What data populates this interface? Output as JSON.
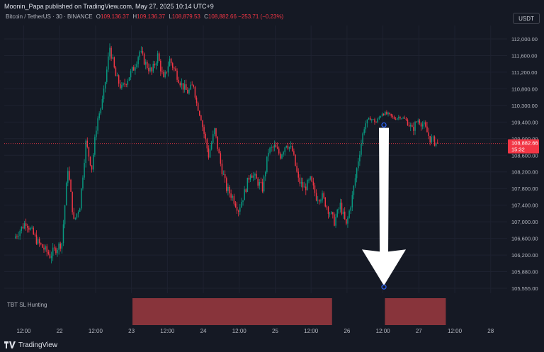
{
  "header": {
    "published": "Moonin_Papa published on TradingView.com, May 27, 2025 10:14 UTC+9"
  },
  "legend": {
    "symbol": "Bitcoin / TetherUS · 30 · BINANCE",
    "open_label": "O",
    "open": "109,136.37",
    "high_label": "H",
    "high": "109,136.37",
    "low_label": "L",
    "low": "108,879.53",
    "close_label": "C",
    "close": "108,882.66",
    "change": "−253.71 (−0.23%)"
  },
  "currency": "USDT",
  "price_tag": {
    "price": "108,882.66",
    "countdown": "15:32"
  },
  "indicator": {
    "name": "TBT SL Hunting"
  },
  "footer": {
    "brand": "TradingView"
  },
  "colors": {
    "background": "#151924",
    "up": "#089981",
    "down": "#f23645",
    "last_price": "#f23645",
    "zone": "#9c3a40",
    "grid": "#1e2230"
  },
  "chart_data": {
    "type": "candlestick",
    "y_axis_ticks": [
      "112,000.00",
      "111,600.00",
      "111,200.00",
      "110,800.00",
      "110,300.00",
      "109,400.00",
      "109,000.00",
      "108,600.00",
      "108,200.00",
      "107,800.00",
      "107,400.00",
      "107,000.00",
      "106,600.00",
      "106,200.00",
      "105,880.00",
      "105,555.00"
    ],
    "x_axis_ticks": [
      "12:00",
      "22",
      "12:00",
      "23",
      "12:00",
      "24",
      "12:00",
      "25",
      "12:00",
      "26",
      "12:00",
      "27",
      "12:00",
      "28"
    ],
    "price_path": [
      [
        "2025-05-21 09:00",
        106600
      ],
      [
        "2025-05-21 13:00",
        107000
      ],
      [
        "2025-05-21 17:00",
        106500
      ],
      [
        "2025-05-21 21:00",
        106200
      ],
      [
        "2025-05-22 01:00",
        106500
      ],
      [
        "2025-05-22 03:00",
        108300
      ],
      [
        "2025-05-22 05:00",
        107000
      ],
      [
        "2025-05-22 07:00",
        107400
      ],
      [
        "2025-05-22 09:00",
        108900
      ],
      [
        "2025-05-22 11:00",
        108300
      ],
      [
        "2025-05-22 13:00",
        109600
      ],
      [
        "2025-05-22 15:00",
        110700
      ],
      [
        "2025-05-22 17:00",
        111800
      ],
      [
        "2025-05-22 19:00",
        111100
      ],
      [
        "2025-05-22 21:00",
        110800
      ],
      [
        "2025-05-23 01:00",
        111300
      ],
      [
        "2025-05-23 03:00",
        111700
      ],
      [
        "2025-05-23 05:00",
        111400
      ],
      [
        "2025-05-23 07:00",
        111200
      ],
      [
        "2025-05-23 09:00",
        111600
      ],
      [
        "2025-05-23 11:00",
        111000
      ],
      [
        "2025-05-23 13:00",
        111500
      ],
      [
        "2025-05-23 15:00",
        111200
      ],
      [
        "2025-05-23 17:00",
        110900
      ],
      [
        "2025-05-23 19:00",
        110700
      ],
      [
        "2025-05-23 21:00",
        110900
      ],
      [
        "2025-05-24 00:00",
        109300
      ],
      [
        "2025-05-24 02:00",
        108600
      ],
      [
        "2025-05-24 04:00",
        109200
      ],
      [
        "2025-05-24 06:00",
        108400
      ],
      [
        "2025-05-24 08:00",
        107800
      ],
      [
        "2025-05-24 10:00",
        107600
      ],
      [
        "2025-05-24 12:00",
        107300
      ],
      [
        "2025-05-24 14:00",
        107700
      ],
      [
        "2025-05-24 16:00",
        108200
      ],
      [
        "2025-05-24 18:00",
        108000
      ],
      [
        "2025-05-24 20:00",
        107800
      ],
      [
        "2025-05-24 22:00",
        108700
      ],
      [
        "2025-05-25 00:00",
        108800
      ],
      [
        "2025-05-25 02:00",
        108600
      ],
      [
        "2025-05-25 04:00",
        108900
      ],
      [
        "2025-05-25 06:00",
        108700
      ],
      [
        "2025-05-25 08:00",
        108000
      ],
      [
        "2025-05-25 10:00",
        107800
      ],
      [
        "2025-05-25 12:00",
        108000
      ],
      [
        "2025-05-25 14:00",
        107600
      ],
      [
        "2025-05-25 16:00",
        107600
      ],
      [
        "2025-05-25 18:00",
        107300
      ],
      [
        "2025-05-25 20:00",
        107000
      ],
      [
        "2025-05-25 22:00",
        107400
      ],
      [
        "2025-05-26 00:00",
        106900
      ],
      [
        "2025-05-26 02:00",
        107600
      ],
      [
        "2025-05-26 04:00",
        108500
      ],
      [
        "2025-05-26 06:00",
        109300
      ],
      [
        "2025-05-26 08:00",
        109600
      ],
      [
        "2025-05-26 10:00",
        109400
      ],
      [
        "2025-05-26 12:00",
        109900
      ],
      [
        "2025-05-26 14:00",
        109800
      ],
      [
        "2025-05-26 16:00",
        109600
      ],
      [
        "2025-05-26 18:00",
        109700
      ],
      [
        "2025-05-26 20:00",
        109500
      ],
      [
        "2025-05-26 22:00",
        109200
      ],
      [
        "2025-05-27 00:00",
        109500
      ],
      [
        "2025-05-27 02:00",
        109300
      ],
      [
        "2025-05-27 04:00",
        109000
      ],
      [
        "2025-05-27 06:00",
        108900
      ]
    ],
    "last_price": 108882.66,
    "marker": {
      "from": [
        "2025-05-26 12:20",
        109330
      ],
      "to": [
        "2025-05-26 12:20",
        105580
      ],
      "shape": "arrow-down"
    },
    "indicator_zones": [
      {
        "start": "2025-05-23 00:20",
        "end": "2025-05-25 19:00"
      },
      {
        "start": "2025-05-26 12:40",
        "end": "2025-05-27 09:00"
      }
    ],
    "ylim": [
      105555,
      112000
    ],
    "xlim": [
      "2025-05-21 05:30",
      "2025-05-28 05:30"
    ],
    "grid": true
  }
}
